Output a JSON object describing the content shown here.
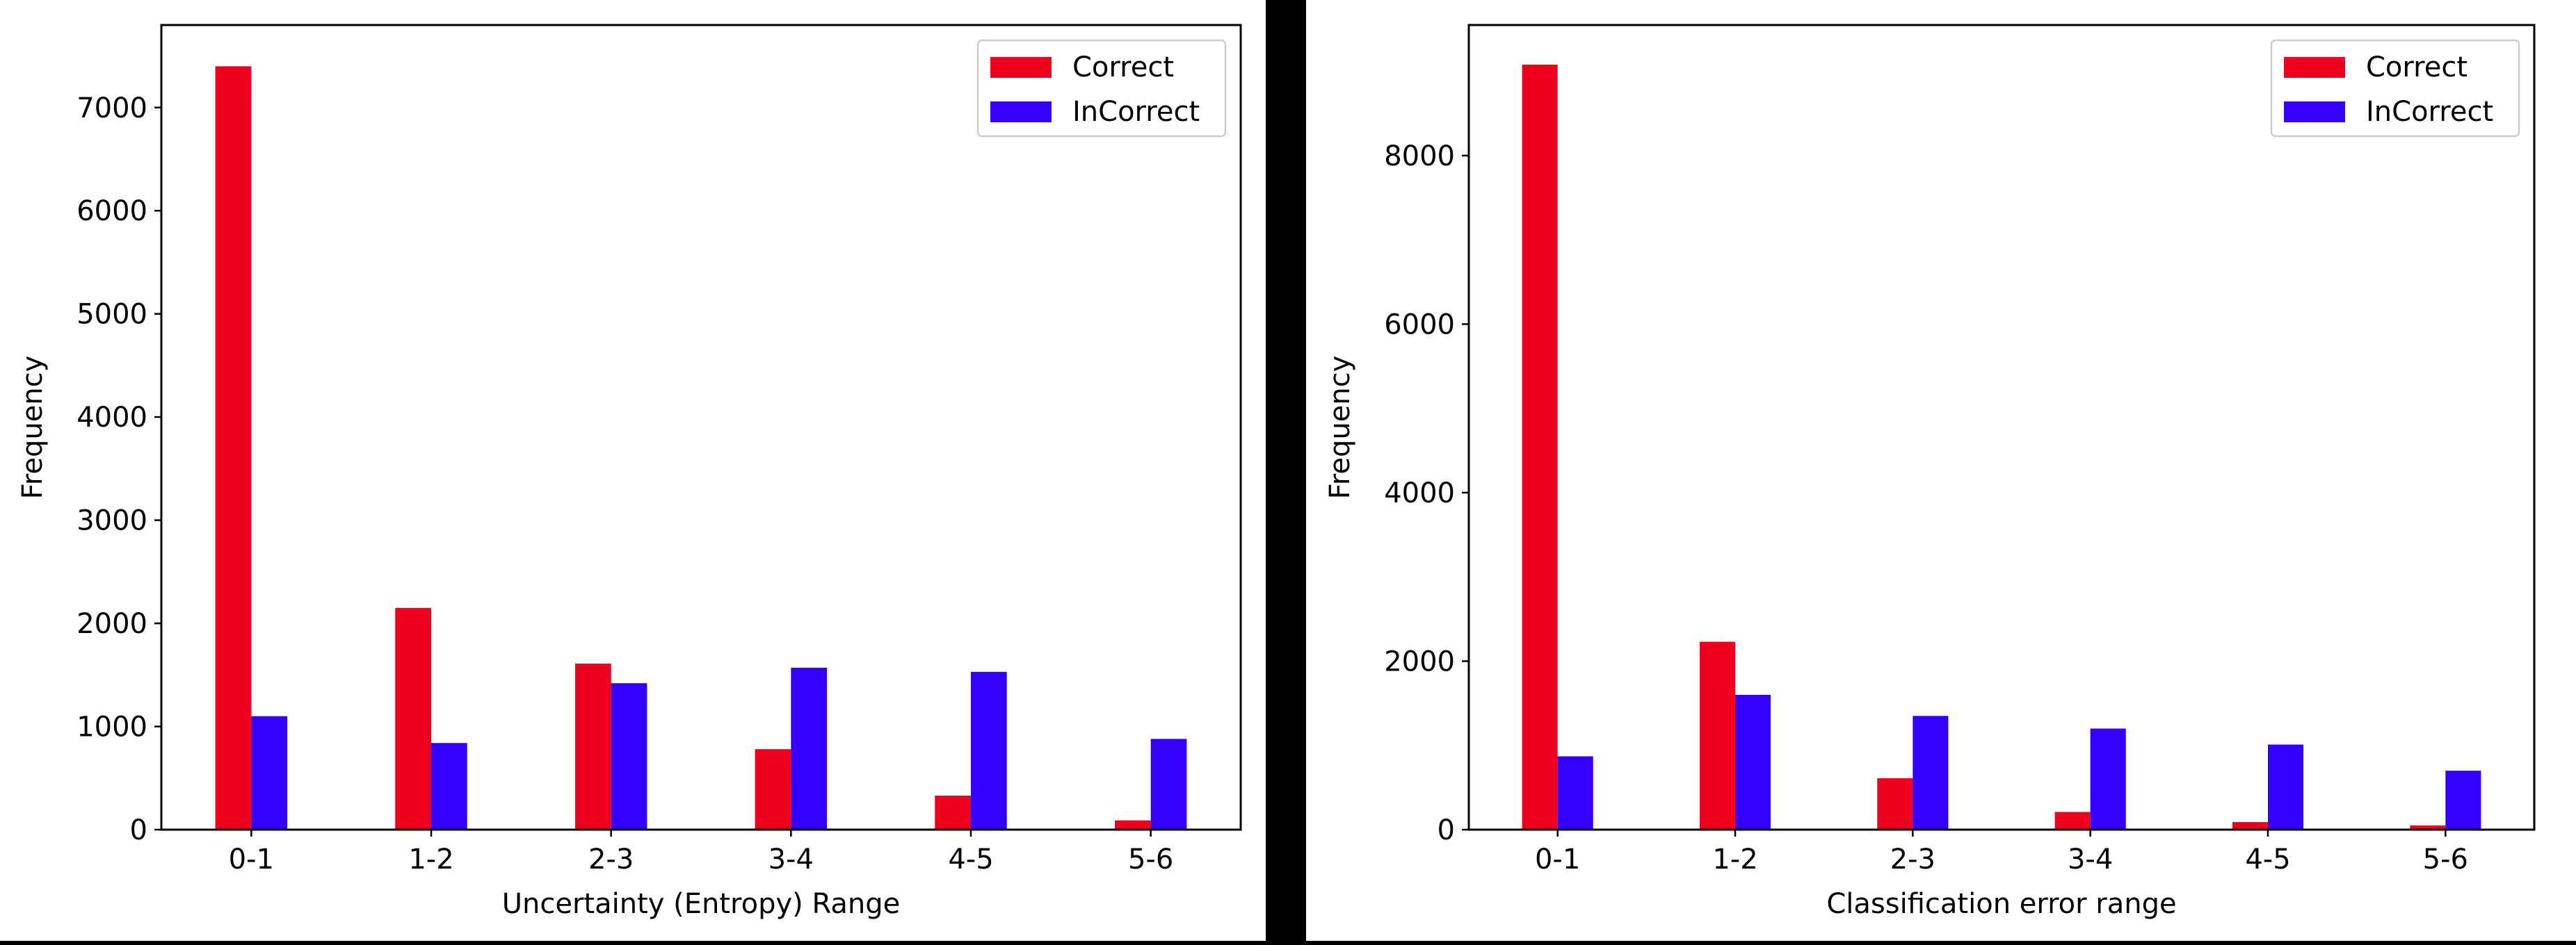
{
  "colors": {
    "correct": "#f0001e",
    "incorrect": "#3300ff",
    "divider": "#000000"
  },
  "chart_data": [
    {
      "type": "bar",
      "title": "",
      "xlabel": "Uncertainty (Entropy) Range",
      "ylabel": "Frequency",
      "categories": [
        "0-1",
        "1-2",
        "2-3",
        "3-4",
        "4-5",
        "5-6"
      ],
      "ylim": [
        0,
        7800
      ],
      "yticks": [
        0,
        1000,
        2000,
        3000,
        4000,
        5000,
        6000,
        7000
      ],
      "grid": false,
      "legend": "top-right",
      "series": [
        {
          "name": "Correct",
          "values": [
            7400,
            2150,
            1610,
            780,
            330,
            90
          ]
        },
        {
          "name": "InCorrect",
          "values": [
            1100,
            840,
            1420,
            1570,
            1530,
            880
          ]
        }
      ]
    },
    {
      "type": "bar",
      "title": "",
      "xlabel": "Classification error range",
      "ylabel": "Frequency",
      "categories": [
        "0-1",
        "1-2",
        "2-3",
        "3-4",
        "4-5",
        "5-6"
      ],
      "ylim": [
        0,
        9550
      ],
      "yticks": [
        0,
        2000,
        4000,
        6000,
        8000
      ],
      "grid": false,
      "legend": "top-right",
      "series": [
        {
          "name": "Correct",
          "values": [
            9080,
            2230,
            610,
            210,
            90,
            50
          ]
        },
        {
          "name": "InCorrect",
          "values": [
            870,
            1600,
            1350,
            1200,
            1010,
            700
          ]
        }
      ]
    }
  ]
}
